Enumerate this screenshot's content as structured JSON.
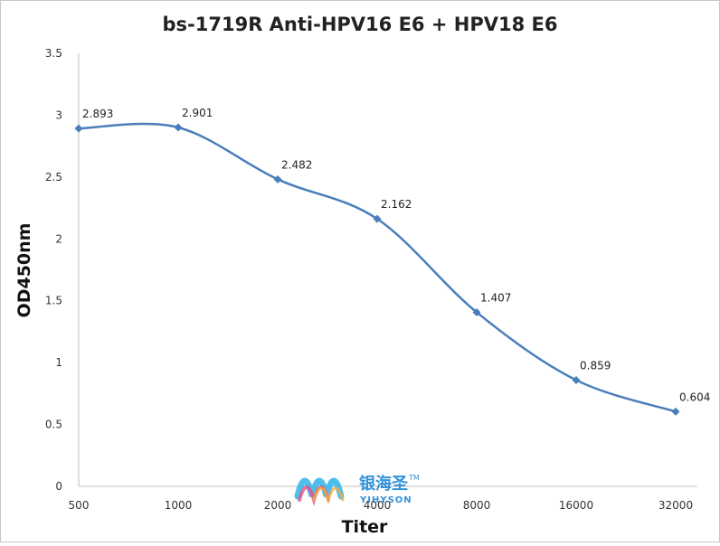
{
  "chart_data": {
    "type": "line",
    "title": "bs-1719R Anti-HPV16 E6 + HPV18 E6",
    "xlabel": "Titer",
    "ylabel": "OD450nm",
    "categories": [
      "500",
      "1000",
      "2000",
      "4000",
      "8000",
      "16000",
      "32000"
    ],
    "series": [
      {
        "values": [
          2.893,
          2.901,
          2.482,
          2.162,
          1.407,
          0.859,
          0.604
        ],
        "labels": [
          "2.893",
          "2.901",
          "2.482",
          "2.162",
          "1.407",
          "0.859",
          "0.604"
        ],
        "color": "#4a7ebb"
      }
    ],
    "ylim": [
      0,
      3.5
    ],
    "yticks": [
      "0",
      "0.5",
      "1",
      "1.5",
      "2",
      "2.5",
      "3",
      "3.5"
    ],
    "ytick_values": [
      0,
      0.5,
      1,
      1.5,
      2,
      2.5,
      3,
      3.5
    ],
    "grid": false,
    "smooth": true
  },
  "watermark": {
    "brand": "银海圣",
    "brand_latin": "YIHYSON",
    "trademark": "TM"
  }
}
